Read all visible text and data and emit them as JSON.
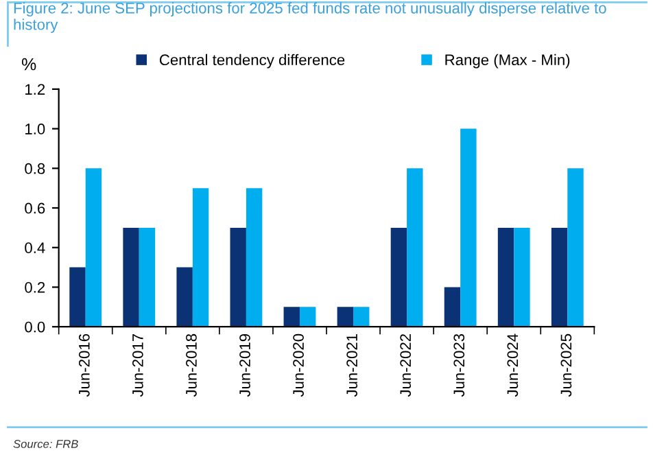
{
  "chart_data": {
    "type": "bar",
    "title": "Figure 2: June SEP projections for 2025 fed funds rate not unusually disperse relative to history",
    "ylabel": "%",
    "categories": [
      "Jun-2016",
      "Jun-2017",
      "Jun-2018",
      "Jun-2019",
      "Jun-2020",
      "Jun-2021",
      "Jun-2022",
      "Jun-2023",
      "Jun-2024",
      "Jun-2025"
    ],
    "series": [
      {
        "name": "Central tendency difference",
        "color": "#0b3275",
        "values": [
          0.3,
          0.5,
          0.3,
          0.5,
          0.1,
          0.1,
          0.5,
          0.2,
          0.5,
          0.5
        ]
      },
      {
        "name": "Range (Max - Min)",
        "color": "#00aeef",
        "values": [
          0.8,
          0.5,
          0.7,
          0.7,
          0.1,
          0.1,
          0.8,
          1.0,
          0.5,
          0.8
        ]
      }
    ],
    "ylim": [
      0,
      1.2
    ],
    "yticks": [
      {
        "value": 0,
        "label": "0.0"
      },
      {
        "value": 0.2,
        "label": "0.2"
      },
      {
        "value": 0.4,
        "label": "0.4"
      },
      {
        "value": 0.6,
        "label": "0.6"
      },
      {
        "value": 0.8,
        "label": "0.8"
      },
      {
        "value": 1.0,
        "label": "1.0"
      },
      {
        "value": 1.2,
        "label": "1.2"
      }
    ],
    "grid": false,
    "legend": "top",
    "annotations": [
      "Source: FRB"
    ]
  }
}
